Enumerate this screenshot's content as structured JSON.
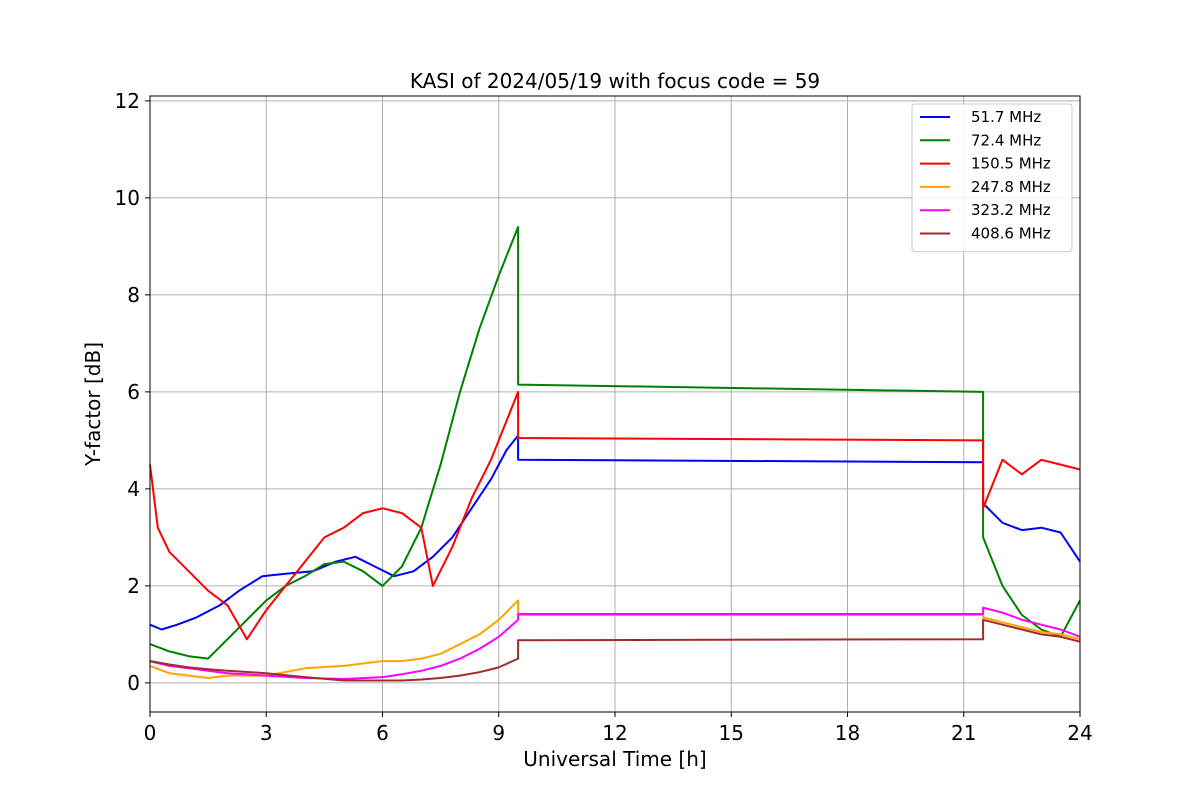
{
  "chart_data": {
    "type": "line",
    "title": "KASI of 2024/05/19 with focus code = 59",
    "xlabel": "Universal Time [h]",
    "ylabel": "Y-factor [dB]",
    "xlim": [
      0,
      24
    ],
    "ylim": [
      -0.6,
      12.1
    ],
    "xticks": [
      0,
      3,
      6,
      9,
      12,
      15,
      18,
      21,
      24
    ],
    "yticks": [
      0,
      2,
      4,
      6,
      8,
      10,
      12
    ],
    "grid": true,
    "legend_position": "upper right",
    "series": [
      {
        "name": " 51.7 MHz",
        "color": "#0000ff",
        "x": [
          0,
          0.3,
          0.7,
          1.2,
          1.8,
          2.3,
          2.9,
          3.5,
          4.2,
          4.8,
          5.3,
          5.8,
          6.3,
          6.8,
          7.3,
          7.8,
          8.3,
          8.8,
          9.2,
          9.5,
          9.5,
          21.5,
          21.5,
          22.0,
          22.5,
          23.0,
          23.5,
          24.0
        ],
        "y": [
          1.2,
          1.1,
          1.2,
          1.35,
          1.6,
          1.9,
          2.2,
          2.25,
          2.3,
          2.5,
          2.6,
          2.4,
          2.2,
          2.3,
          2.6,
          3.0,
          3.6,
          4.2,
          4.8,
          5.1,
          4.6,
          4.55,
          3.7,
          3.3,
          3.15,
          3.2,
          3.1,
          2.5
        ]
      },
      {
        "name": " 72.4 MHz",
        "color": "#008000",
        "x": [
          0,
          0.5,
          1.0,
          1.5,
          2.0,
          2.5,
          3.0,
          3.5,
          4.0,
          4.5,
          5.0,
          5.5,
          6.0,
          6.5,
          7.0,
          7.5,
          8.0,
          8.5,
          9.0,
          9.5,
          9.5,
          21.5,
          21.5,
          22.0,
          22.5,
          23.0,
          23.5,
          24.0
        ],
        "y": [
          0.8,
          0.65,
          0.55,
          0.5,
          0.9,
          1.3,
          1.7,
          2.0,
          2.2,
          2.45,
          2.5,
          2.3,
          2.0,
          2.4,
          3.2,
          4.5,
          6.0,
          7.3,
          8.4,
          9.4,
          6.15,
          6.0,
          3.0,
          2.0,
          1.4,
          1.1,
          0.95,
          1.7
        ]
      },
      {
        "name": "150.5 MHz",
        "color": "#ff0000",
        "x": [
          0,
          0.2,
          0.5,
          1.0,
          1.5,
          2.0,
          2.5,
          3.0,
          3.5,
          4.0,
          4.5,
          5.0,
          5.5,
          6.0,
          6.5,
          7.0,
          7.3,
          7.8,
          8.3,
          8.8,
          9.2,
          9.5,
          9.5,
          21.5,
          21.5,
          22.0,
          22.5,
          23.0,
          23.5,
          24.0
        ],
        "y": [
          4.5,
          3.2,
          2.7,
          2.3,
          1.9,
          1.6,
          0.9,
          1.5,
          2.0,
          2.5,
          3.0,
          3.2,
          3.5,
          3.6,
          3.5,
          3.2,
          2.0,
          2.8,
          3.8,
          4.6,
          5.4,
          6.0,
          5.05,
          5.0,
          3.6,
          4.6,
          4.3,
          4.6,
          4.5,
          4.4
        ]
      },
      {
        "name": "247.8 MHz",
        "color": "#ffa500",
        "x": [
          0,
          0.5,
          1.0,
          1.5,
          2.0,
          3.0,
          4.0,
          5.0,
          6.0,
          6.5,
          7.0,
          7.5,
          8.0,
          8.5,
          9.0,
          9.5,
          9.5,
          21.5,
          21.5,
          22.0,
          22.5,
          23.0,
          23.5,
          24.0
        ],
        "y": [
          0.35,
          0.2,
          0.15,
          0.1,
          0.15,
          0.15,
          0.3,
          0.35,
          0.45,
          0.45,
          0.5,
          0.6,
          0.8,
          1.0,
          1.3,
          1.7,
          1.4,
          1.4,
          1.35,
          1.25,
          1.15,
          1.05,
          1.0,
          0.9
        ]
      },
      {
        "name": "323.2 MHz",
        "color": "#ff00ff",
        "x": [
          0,
          0.5,
          1.0,
          1.5,
          2.0,
          3.0,
          4.0,
          5.0,
          6.0,
          6.5,
          7.0,
          7.5,
          8.0,
          8.5,
          9.0,
          9.5,
          9.5,
          21.5,
          21.5,
          22.0,
          22.5,
          23.0,
          23.5,
          24.0
        ],
        "y": [
          0.45,
          0.35,
          0.3,
          0.25,
          0.2,
          0.15,
          0.1,
          0.08,
          0.12,
          0.18,
          0.25,
          0.35,
          0.5,
          0.7,
          0.95,
          1.3,
          1.42,
          1.42,
          1.55,
          1.45,
          1.3,
          1.2,
          1.1,
          0.95
        ]
      },
      {
        "name": "408.6 MHz",
        "color": "#a52a2a",
        "x": [
          0,
          0.5,
          1.0,
          1.5,
          2.0,
          3.0,
          4.0,
          5.0,
          6.0,
          6.5,
          7.0,
          7.5,
          8.0,
          8.5,
          9.0,
          9.5,
          9.5,
          21.5,
          21.5,
          22.0,
          22.5,
          23.0,
          23.5,
          24.0
        ],
        "y": [
          0.45,
          0.38,
          0.32,
          0.28,
          0.25,
          0.2,
          0.12,
          0.05,
          0.05,
          0.05,
          0.07,
          0.1,
          0.15,
          0.22,
          0.32,
          0.5,
          0.88,
          0.9,
          1.3,
          1.2,
          1.1,
          1.0,
          0.95,
          0.85
        ]
      }
    ]
  }
}
